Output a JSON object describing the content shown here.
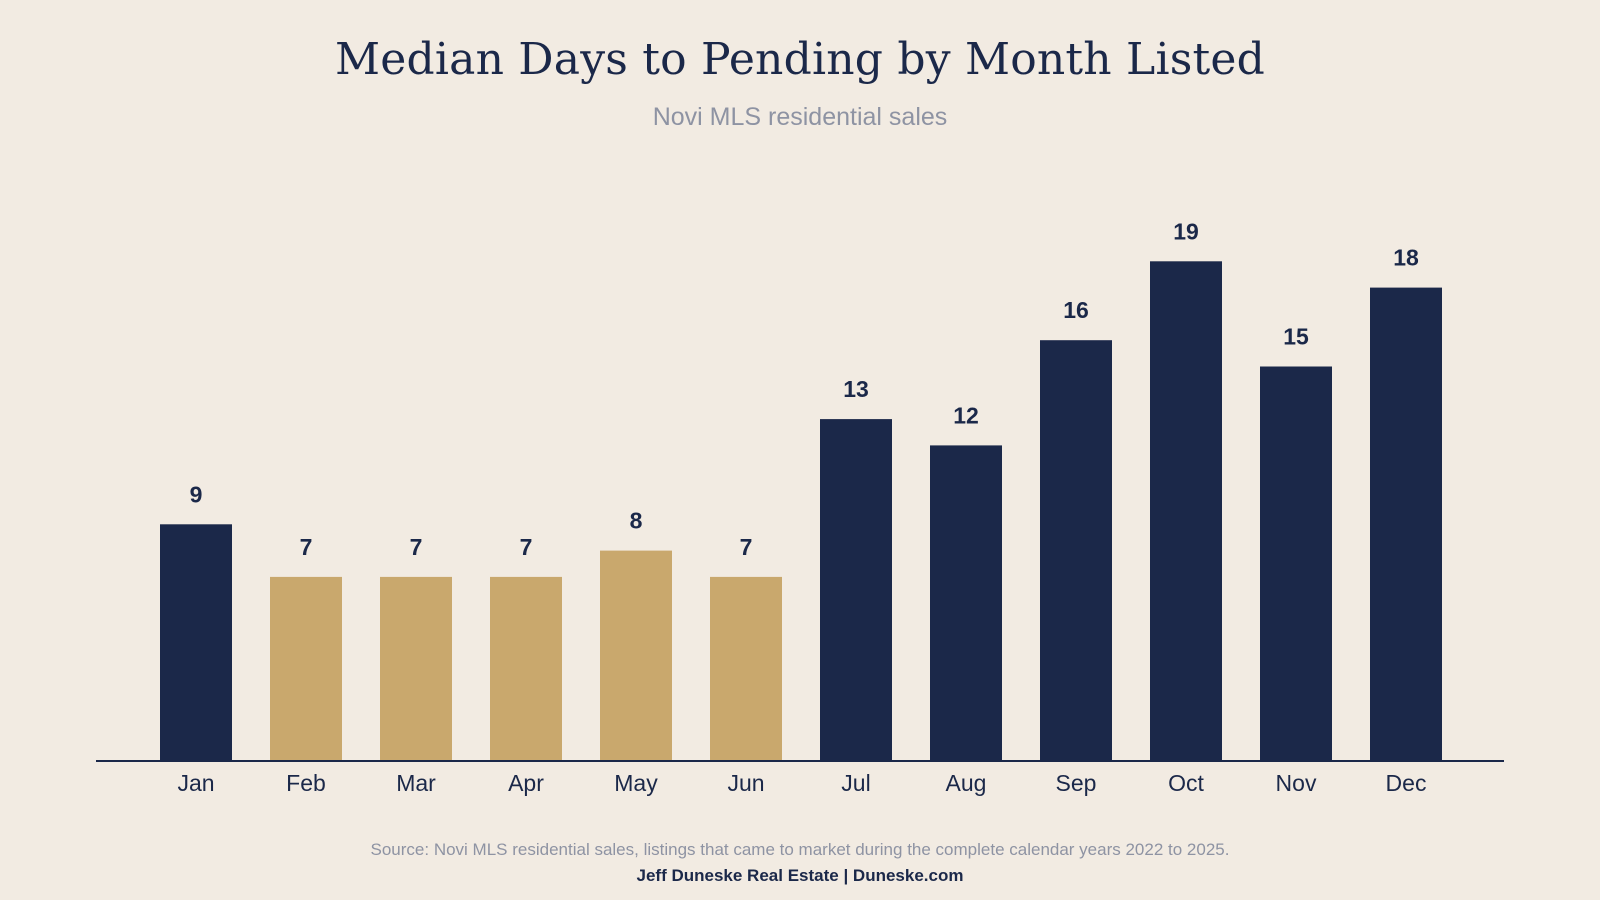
{
  "title": "Median Days to Pending by Month Listed",
  "subtitle": "Novi MLS residential sales",
  "source": "Source: Novi MLS residential sales, listings that came to market during the complete calendar years 2022 to 2025.",
  "footer": "Jeff Duneske Real Estate | Duneske.com",
  "colors": {
    "background": "#F2EBE2",
    "primary": "#1B2849",
    "highlight": "#C9A86D"
  },
  "chart_data": {
    "type": "bar",
    "categories": [
      "Jan",
      "Feb",
      "Mar",
      "Apr",
      "May",
      "Jun",
      "Jul",
      "Aug",
      "Sep",
      "Oct",
      "Nov",
      "Dec"
    ],
    "values": [
      9,
      7,
      7,
      7,
      8,
      7,
      13,
      12,
      16,
      19,
      15,
      18
    ],
    "highlighted_categories": [
      "Feb",
      "Mar",
      "Apr",
      "May",
      "Jun"
    ],
    "data_labels": [
      "9",
      "7",
      "7",
      "7",
      "8",
      "7",
      "13",
      "12",
      "16",
      "19",
      "15",
      "18"
    ],
    "xlabel": "",
    "ylabel": "",
    "ylim": [
      0,
      19
    ],
    "grid": false,
    "legend": "none"
  }
}
